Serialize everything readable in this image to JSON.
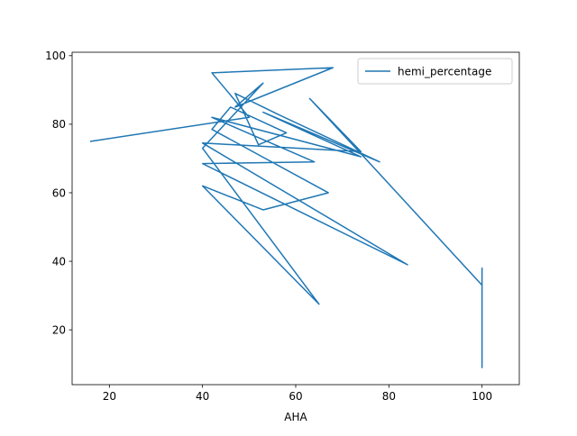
{
  "chart_data": {
    "type": "line",
    "xlabel": "AHA",
    "ylabel": "",
    "xlim": [
      12,
      108
    ],
    "ylim": [
      4,
      101
    ],
    "x_ticks": [
      20,
      40,
      60,
      80,
      100
    ],
    "y_ticks": [
      20,
      40,
      60,
      80,
      100
    ],
    "grid": false,
    "legend_position": "top-right",
    "series": [
      {
        "name": "hemi_percentage",
        "color": "#1f77b4",
        "x": [
          16,
          50,
          42,
          68,
          47,
          53,
          40,
          65,
          40,
          53,
          67,
          42,
          46,
          58,
          52,
          47,
          56,
          78,
          53,
          74,
          42,
          64,
          40,
          84,
          40,
          74,
          63,
          77,
          100,
          100,
          100,
          100,
          100,
          100
        ],
        "y": [
          75,
          82,
          95,
          96.5,
          85,
          92,
          73,
          27.5,
          62,
          55,
          60,
          78.5,
          85,
          77.5,
          74,
          89,
          83,
          69,
          83.5,
          70.5,
          82,
          69,
          68.5,
          39,
          74.5,
          72,
          87.5,
          67,
          33,
          38,
          9,
          36,
          12,
          28
        ]
      }
    ]
  }
}
